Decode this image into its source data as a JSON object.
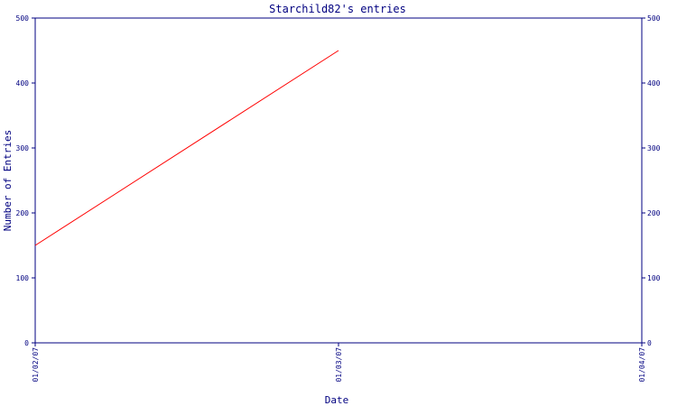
{
  "chart_data": {
    "type": "line",
    "title": "Starchild82's entries",
    "xlabel": "Date",
    "ylabel": "Number of Entries",
    "x_ticks": [
      "01/02/07",
      "01/03/07",
      "01/04/07"
    ],
    "x_range": [
      "01/02/07",
      "01/04/07"
    ],
    "ylim": [
      0,
      500
    ],
    "y_ticks": [
      0,
      100,
      200,
      300,
      400,
      500
    ],
    "y_axis_right": true,
    "grid": false,
    "series": [
      {
        "color": "#ff0000",
        "points": [
          {
            "x": "01/02/07",
            "y": 150
          },
          {
            "x": "01/03/07",
            "y": 450
          }
        ]
      }
    ]
  },
  "colors": {
    "axis": "#000080",
    "series": "#ff0000",
    "text": "#000080"
  }
}
